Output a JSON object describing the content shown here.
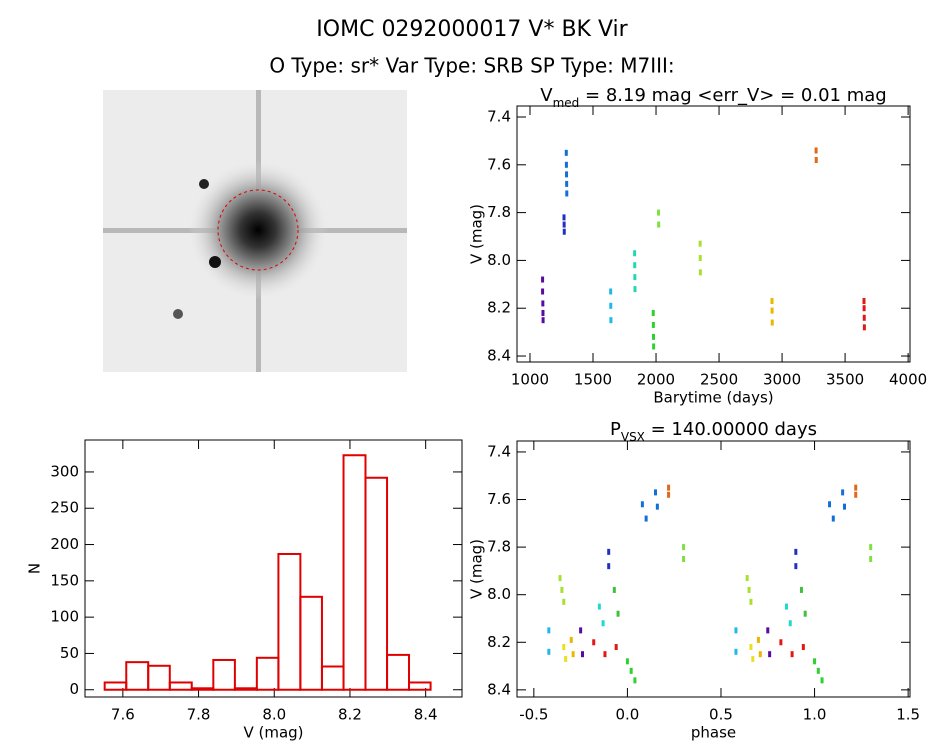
{
  "title": "IOMC 0292000017   V* BK Vir",
  "subtitle": "O Type: sr*  Var Type: SRB  SP Type: M7III:",
  "chart_data": [
    {
      "type": "scatter",
      "title_parts": [
        "V",
        "med",
        " = 8.19 mag <err_V> = 0.01 mag"
      ],
      "x_label": "Barytime (days)",
      "y_label": "V (mag)",
      "xlim": [
        897,
        4015
      ],
      "ylim": [
        7.354,
        8.425
      ],
      "y_inverted": true,
      "xticks": [
        1000,
        1500,
        2000,
        2500,
        3000,
        3500,
        4000
      ],
      "yticks": [
        7.4,
        7.6,
        7.8,
        {
          "value": 8,
          "label": "8.0"
        },
        8.2,
        8.4
      ],
      "series": [
        {
          "color": "#5a0aa0",
          "x": [
            1100,
            1100,
            1102,
            1103,
            1104
          ],
          "values": [
            8.08,
            8.13,
            8.18,
            8.22,
            8.25
          ]
        },
        {
          "color": "#2030c0",
          "x": [
            1270,
            1271,
            1272
          ],
          "values": [
            7.82,
            7.85,
            7.88
          ]
        },
        {
          "color": "#1070d8",
          "x": [
            1288,
            1289,
            1290,
            1291,
            1292
          ],
          "values": [
            7.55,
            7.6,
            7.64,
            7.68,
            7.72
          ]
        },
        {
          "color": "#20b8e8",
          "x": [
            1640,
            1641,
            1642
          ],
          "values": [
            8.13,
            8.19,
            8.25
          ]
        },
        {
          "color": "#20d8b0",
          "x": [
            1830,
            1831,
            1832,
            1833
          ],
          "values": [
            7.97,
            8.02,
            8.07,
            8.12
          ]
        },
        {
          "color": "#30d030",
          "x": [
            1978,
            1979,
            1980,
            1981
          ],
          "values": [
            8.22,
            8.27,
            8.32,
            8.36
          ]
        },
        {
          "color": "#80e040",
          "x": [
            2020,
            2021
          ],
          "values": [
            7.8,
            7.85
          ]
        },
        {
          "color": "#a8e030",
          "x": [
            2350,
            2351,
            2352
          ],
          "values": [
            7.93,
            7.99,
            8.05
          ]
        },
        {
          "color": "#e8b800",
          "x": [
            2920,
            2921,
            2922
          ],
          "values": [
            8.17,
            8.21,
            8.26
          ]
        },
        {
          "color": "#e06818",
          "x": [
            3270,
            3271
          ],
          "values": [
            7.54,
            7.58
          ]
        },
        {
          "color": "#e01818",
          "x": [
            3650,
            3651,
            3652,
            3653
          ],
          "values": [
            8.17,
            8.2,
            8.24,
            8.28
          ]
        }
      ]
    },
    {
      "type": "scatter",
      "title_parts": [
        "P",
        "VSX",
        " = 140.00000 days"
      ],
      "x_label": "phase",
      "y_label": "V (mag)",
      "xlim": [
        -0.59,
        1.51
      ],
      "ylim": [
        7.354,
        8.43
      ],
      "y_inverted": true,
      "xticks": [
        -0.5,
        {
          "value": 0,
          "label": "0.0"
        },
        0.5,
        {
          "value": 1,
          "label": "1.0"
        },
        1.5
      ],
      "yticks": [
        7.4,
        7.6,
        7.8,
        {
          "value": 8,
          "label": "8.0"
        },
        8.2,
        8.4
      ],
      "series": [
        {
          "color": "#20b8e8",
          "x": [
            -0.42,
            -0.42,
            0.58,
            0.58
          ],
          "values": [
            8.15,
            8.24,
            8.15,
            8.24
          ]
        },
        {
          "color": "#20d8d0",
          "x": [
            -0.15,
            -0.13,
            0.85,
            0.87
          ],
          "values": [
            8.05,
            8.12,
            8.05,
            8.12
          ]
        },
        {
          "color": "#a8e030",
          "x": [
            -0.36,
            -0.35,
            -0.34,
            0.64,
            0.65,
            0.66
          ],
          "values": [
            7.93,
            7.98,
            8.03,
            7.93,
            7.98,
            8.03
          ]
        },
        {
          "color": "#e8e020",
          "x": [
            -0.34,
            -0.33,
            0.66,
            0.67
          ],
          "values": [
            8.22,
            8.27,
            8.22,
            8.27
          ]
        },
        {
          "color": "#e8b800",
          "x": [
            -0.3,
            -0.29,
            0.7,
            0.71
          ],
          "values": [
            8.19,
            8.25,
            8.19,
            8.25
          ]
        },
        {
          "color": "#5a0aa0",
          "x": [
            -0.25,
            -0.24,
            0.75,
            0.76
          ],
          "values": [
            8.15,
            8.25,
            8.15,
            8.25
          ]
        },
        {
          "color": "#e01818",
          "x": [
            -0.18,
            -0.12,
            -0.06,
            0.82,
            0.88,
            0.94
          ],
          "values": [
            8.2,
            8.25,
            8.22,
            8.2,
            8.25,
            8.22
          ]
        },
        {
          "color": "#40c040",
          "x": [
            -0.07,
            -0.05,
            0.93,
            0.95
          ],
          "values": [
            7.98,
            8.08,
            7.98,
            8.08
          ]
        },
        {
          "color": "#30d030",
          "x": [
            0,
            0.02,
            0.04,
            1,
            1.02,
            1.04
          ],
          "values": [
            8.28,
            8.32,
            8.36,
            8.28,
            8.32,
            8.36
          ]
        },
        {
          "color": "#2030c0",
          "x": [
            -0.1,
            -0.1,
            0.9,
            0.9
          ],
          "values": [
            7.82,
            7.88,
            7.82,
            7.88
          ]
        },
        {
          "color": "#1070d8",
          "x": [
            0.08,
            0.1,
            0.15,
            0.16,
            1.08,
            1.1,
            1.15,
            1.16
          ],
          "values": [
            7.62,
            7.68,
            7.57,
            7.63,
            7.62,
            7.68,
            7.57,
            7.63
          ]
        },
        {
          "color": "#e06818",
          "x": [
            0.22,
            0.22,
            1.22,
            1.22
          ],
          "values": [
            7.55,
            7.58,
            7.55,
            7.58
          ]
        },
        {
          "color": "#80e040",
          "x": [
            0.3,
            0.3,
            1.3,
            1.3
          ],
          "values": [
            7.8,
            7.85,
            7.8,
            7.85
          ]
        }
      ]
    },
    {
      "type": "histogram",
      "x_label": "V (mag)",
      "y_label": "N",
      "color": "#e00000",
      "xlim": [
        7.5,
        8.496
      ],
      "ylim": [
        -10,
        344
      ],
      "xticks": [
        7.6,
        7.8,
        {
          "value": 8,
          "label": "8.0"
        },
        8.2,
        8.4
      ],
      "yticks": [
        0,
        50,
        100,
        150,
        200,
        250,
        300
      ],
      "bins": [
        7.552,
        7.609,
        7.667,
        7.724,
        7.782,
        7.839,
        7.896,
        7.954,
        8.011,
        8.069,
        8.126,
        8.183,
        8.241,
        8.298,
        8.356,
        8.413
      ],
      "values": [
        10,
        38,
        33,
        10,
        2,
        41,
        2,
        44,
        187,
        128,
        32,
        323,
        292,
        48,
        10
      ]
    }
  ]
}
